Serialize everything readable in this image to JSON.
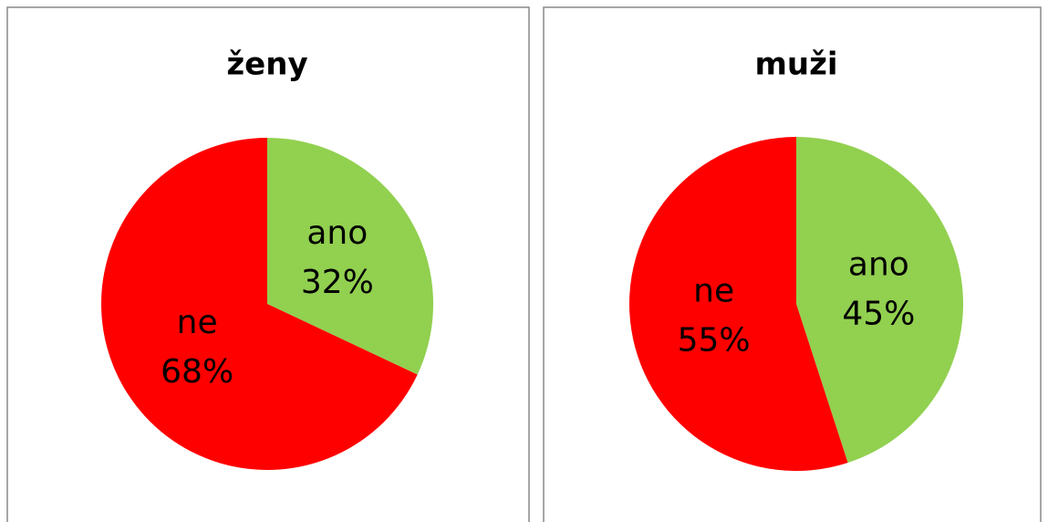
{
  "chart_data": [
    {
      "type": "pie",
      "title": "ženy",
      "categories": [
        "ano",
        "ne"
      ],
      "values": [
        32,
        68
      ],
      "value_labels": [
        "32%",
        "68%"
      ],
      "colors": [
        "#92d050",
        "#ff0000"
      ]
    },
    {
      "type": "pie",
      "title": "muži",
      "categories": [
        "ano",
        "ne"
      ],
      "values": [
        45,
        55
      ],
      "value_labels": [
        "45%",
        "55%"
      ],
      "colors": [
        "#92d050",
        "#ff0000"
      ]
    }
  ]
}
